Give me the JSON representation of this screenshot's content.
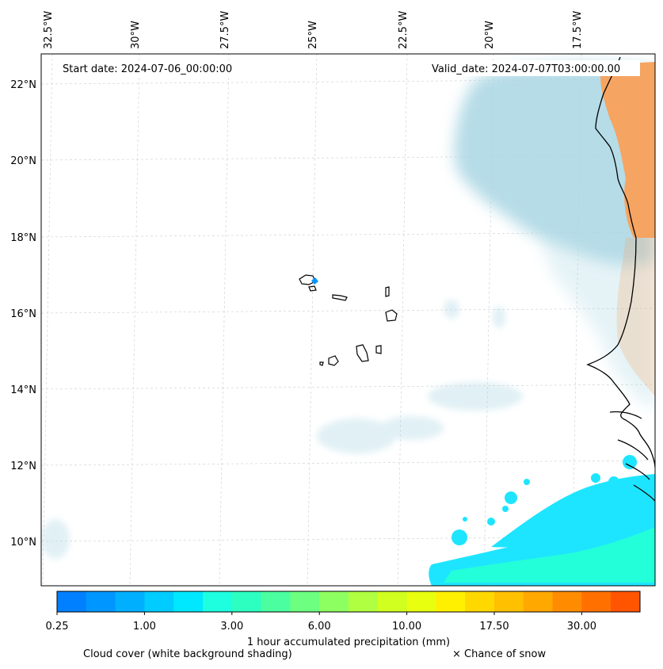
{
  "map": {
    "start_date_label": "Start date: 2024-07-06_00:00:00",
    "valid_date_label": "Valid_date: 2024-07-07T03:00:00.00",
    "lon_labels": [
      "32.5°W",
      "30°W",
      "27.5°W",
      "25°W",
      "22.5°W",
      "20°W",
      "17.5°W"
    ],
    "lat_labels": [
      "22°N",
      "20°N",
      "18°N",
      "16°N",
      "14°N",
      "12°N",
      "10°N"
    ],
    "colors": {
      "cloud": "#a9d6e3",
      "dust": "#f6a462",
      "precip_light": "#1ee5ff",
      "precip_mid": "#23ffd8",
      "coast": "#000000",
      "grid": "#cccccc"
    }
  },
  "colorbar": {
    "colors": [
      "#0080ff",
      "#0096ff",
      "#00b0ff",
      "#00ccff",
      "#00e8ff",
      "#1effe0",
      "#2cffc0",
      "#4bffa0",
      "#6cff80",
      "#8eff60",
      "#b0ff40",
      "#d0ff20",
      "#e8ff10",
      "#fff000",
      "#ffd800",
      "#ffc000",
      "#ffa800",
      "#ff8c00",
      "#ff7000",
      "#ff5400"
    ],
    "tick_labels": [
      "0.25",
      "1.00",
      "3.00",
      "6.00",
      "10.00",
      "17.50",
      "30.00"
    ],
    "label": "1 hour accumulated precipitation (mm)"
  },
  "footer": {
    "cloud_note": "Cloud cover (white background shading)",
    "snow_note": "× Chance of snow"
  }
}
